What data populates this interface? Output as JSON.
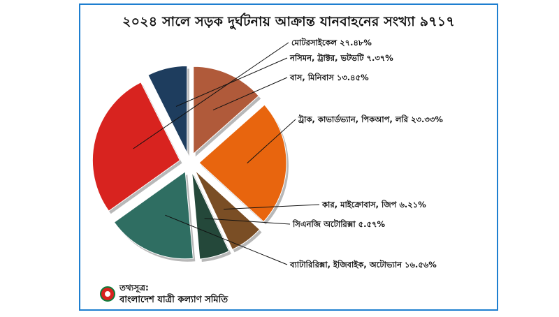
{
  "chart_data": {
    "type": "pie",
    "title": "২০২৪ সালে সড়ক দুর্ঘটনায় আক্রান্ত যানবাহনের সংখ্যা ৯৭১৭",
    "slices": [
      {
        "label": "বাস, মিনিবাস ১৩.৪৫%",
        "value": 13.45,
        "color": "#b05a3a"
      },
      {
        "label": "ট্রাক, কাভার্ডভ্যান, পিকআপ, লরি ২৩.৩৩%",
        "value": 23.33,
        "color": "#e8650e"
      },
      {
        "label": "কার, মাইক্রোবাস, জিপ ৬.২১%",
        "value": 6.21,
        "color": "#7a4e25"
      },
      {
        "label": "সিএনজি অটোরিক্সা ৫.৫৭%",
        "value": 5.57,
        "color": "#24483a"
      },
      {
        "label": "ব্যাটারিরিক্সা, ইজিবাইক, অটোভ্যান ১৬.৫৬%",
        "value": 16.56,
        "color": "#2f6e62"
      },
      {
        "label": "মোটরসাইকেল ২৭.৪৮%",
        "value": 27.48,
        "color": "#d8231f"
      },
      {
        "label": "নসিমন, ট্রাক্টর, ভটভটি ৭.৩৭%",
        "value": 7.37,
        "color": "#1e3d5e"
      }
    ]
  },
  "source": {
    "label": "তথ্যসূত্র:",
    "org": "বাংলাদেশ যাত্রী কল্যাণ সমিতি"
  }
}
